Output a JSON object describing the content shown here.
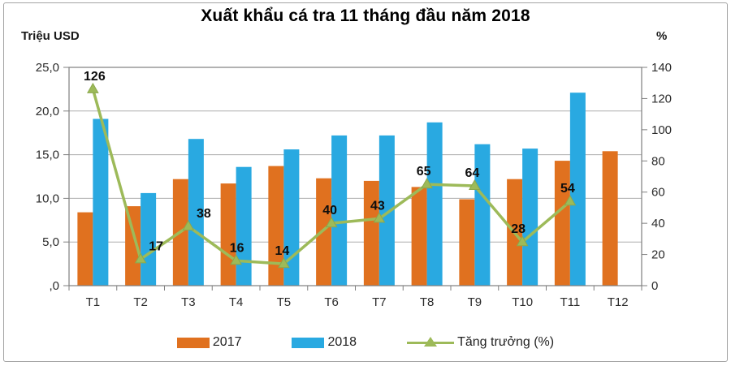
{
  "chart_data": {
    "type": "bar",
    "title": "Xuất khẩu cá tra 11 tháng đầu năm 2018",
    "categories": [
      "T1",
      "T2",
      "T3",
      "T4",
      "T5",
      "T6",
      "T7",
      "T8",
      "T9",
      "T10",
      "T11",
      "T12"
    ],
    "series": [
      {
        "name": "2017",
        "type": "bar",
        "axis": "left",
        "color": "#E0711F",
        "values": [
          8.4,
          9.1,
          12.2,
          11.7,
          13.7,
          12.3,
          12.0,
          11.3,
          9.9,
          12.2,
          14.3,
          15.4
        ]
      },
      {
        "name": "2018",
        "type": "bar",
        "axis": "left",
        "color": "#29A9E1",
        "values": [
          19.1,
          10.6,
          16.8,
          13.6,
          15.6,
          17.2,
          17.2,
          18.7,
          16.2,
          15.7,
          22.1,
          null
        ]
      },
      {
        "name": "Tăng trưởng (%)",
        "type": "line",
        "axis": "right",
        "color": "#9DBA59",
        "marker_stroke": "#8BA84D",
        "values": [
          126,
          17,
          38,
          16,
          14,
          40,
          43,
          65,
          64,
          28,
          54,
          null
        ]
      }
    ],
    "line_label_dx": [
      2,
      19,
      19,
      1,
      -2,
      -2,
      -2,
      -4,
      -3,
      -5,
      -3,
      0
    ],
    "left_axis": {
      "unit": "Triệu USD",
      "min": 0,
      "max": 25,
      "step": 5,
      "tick_labels": [
        "25,0",
        "20,0",
        "15,0",
        "10,0",
        "5,0",
        ",0"
      ]
    },
    "right_axis": {
      "unit": "%",
      "min": 0,
      "max": 140,
      "step": 20,
      "tick_labels": [
        "140",
        "120",
        "100",
        "80",
        "60",
        "40",
        "20",
        "0"
      ]
    },
    "grid": true,
    "legend_position": "bottom",
    "colors": {
      "gridline": "#ADADAD",
      "axis": "#7F7F7F",
      "tick_text": "#2b2b2b",
      "data_label": "#0d0d0d"
    }
  }
}
